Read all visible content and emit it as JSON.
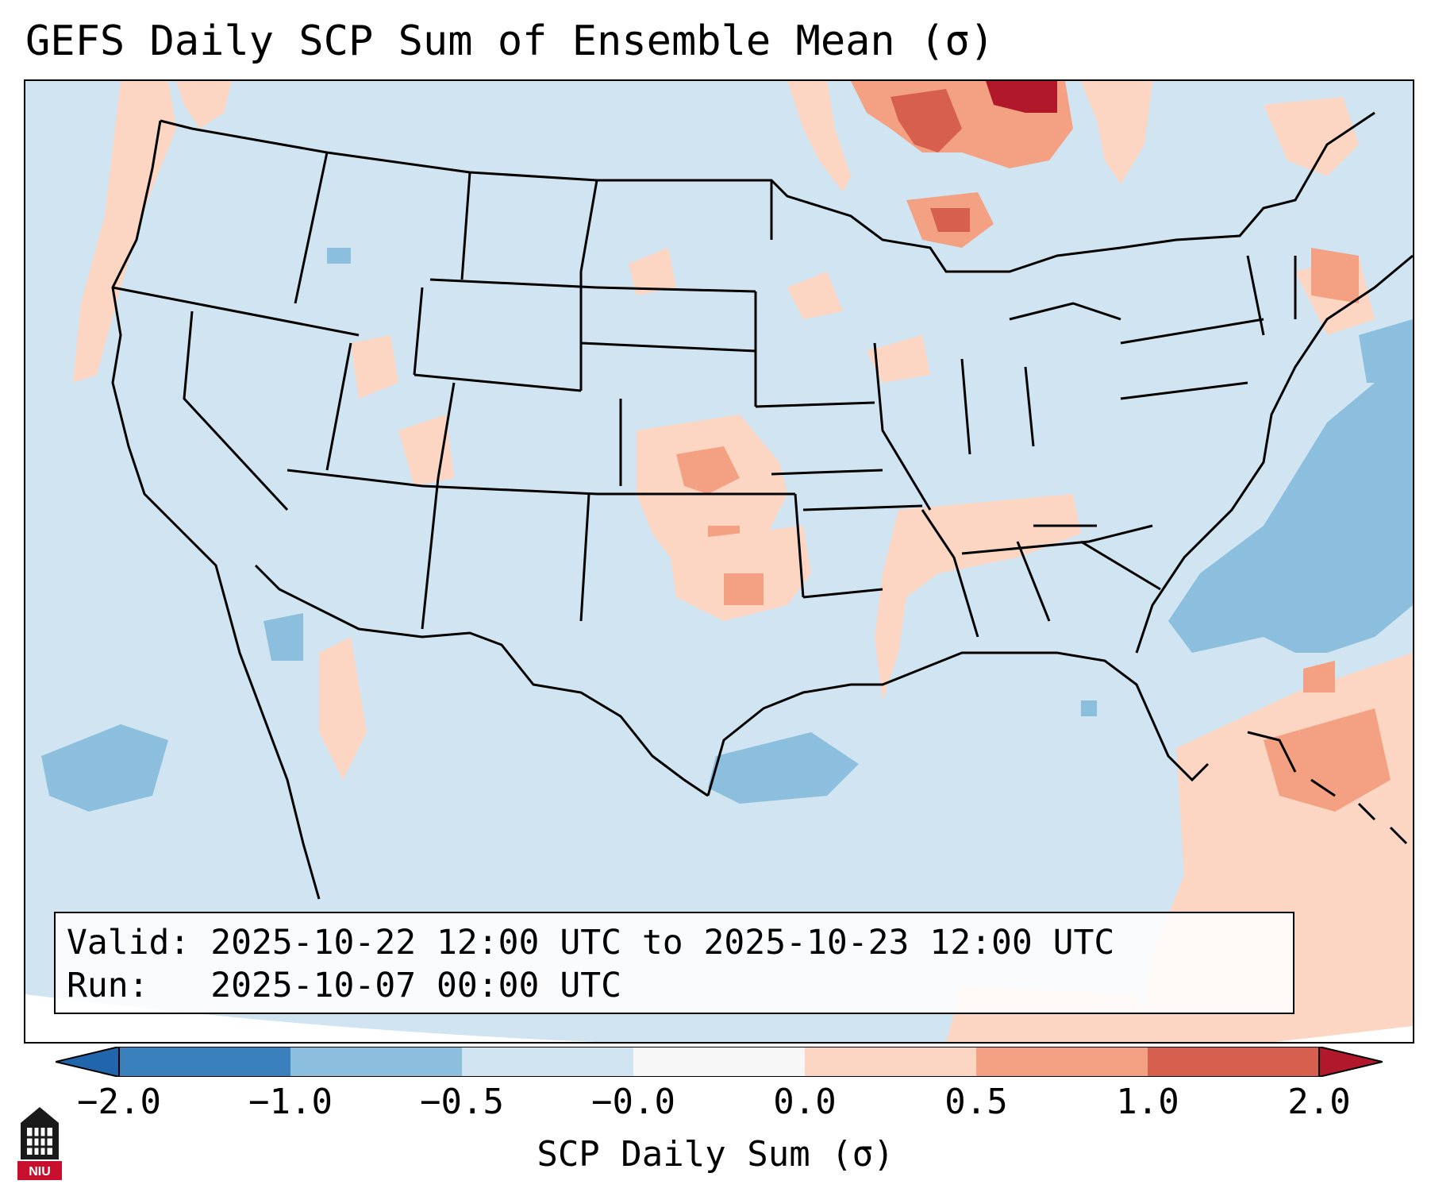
{
  "title": "GEFS Daily SCP Sum of Ensemble Mean (σ)",
  "info": {
    "valid_line": "Valid: 2025-10-22 12:00 UTC to 2025-10-23 12:00 UTC",
    "run_line": "Run:   2025-10-07 00:00 UTC"
  },
  "colorbar": {
    "label": "SCP Daily Sum (σ)",
    "tick_labels": [
      "−2.0",
      "−1.0",
      "−0.5",
      "−0.0",
      "0.0",
      "0.5",
      "1.0",
      "2.0"
    ],
    "bin_colors": [
      "#3a80bd",
      "#8cbfde",
      "#d0e4f1",
      "#f7f7f7",
      "#fcd6c2",
      "#f3a182",
      "#d6604d"
    ],
    "under_color": "#2166ac",
    "over_color": "#b2182b"
  },
  "map": {
    "projection": "Lambert Conformal (CONUS)",
    "extent_label": "Contiguous United States",
    "base_color": "#d0e4f1",
    "highlight_regions": [
      {
        "region": "Southern Ontario / Northern Ontario",
        "level": "1.0 to 2.0",
        "color": "#d6604d"
      },
      {
        "region": "Upper Michigan",
        "level": "1.0 to 2.0",
        "color": "#d6604d"
      },
      {
        "region": "Kansas / Oklahoma",
        "level": "0.0 to 1.0",
        "color": "#f3a182"
      },
      {
        "region": "Tennessee Valley / Mississippi",
        "level": "0.0 to 0.5",
        "color": "#fcd6c2"
      },
      {
        "region": "Western Atlantic",
        "level": "-1.0 to -0.5",
        "color": "#8cbfde"
      },
      {
        "region": "Bahamas / Caribbean",
        "level": "0.5 to 1.0",
        "color": "#f3a182"
      }
    ]
  },
  "logo": {
    "text": "NIU",
    "color": "#c8102e"
  }
}
